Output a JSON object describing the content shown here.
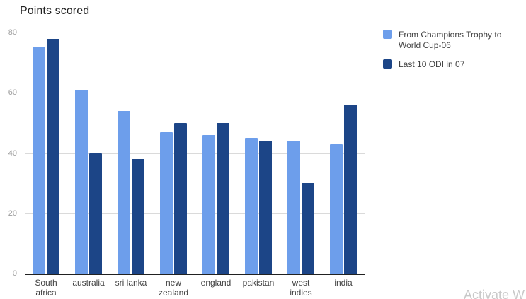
{
  "title": "Points scored",
  "watermark": "Activate W",
  "chart_data": {
    "type": "bar",
    "title": "Points scored",
    "categories": [
      "South africa",
      "australia",
      "sri lanka",
      "new zealand",
      "england",
      "pakistan",
      "west indies",
      "india"
    ],
    "series": [
      {
        "name": "From Champions Trophy to World Cup-06",
        "color": "#6d9eeb",
        "values": [
          75,
          61,
          54,
          47,
          46,
          45,
          44,
          43
        ]
      },
      {
        "name": "Last 10 ODI in 07",
        "color": "#1c4587",
        "values": [
          78,
          40,
          38,
          50,
          50,
          44,
          30,
          56
        ]
      }
    ],
    "xlabel": "",
    "ylabel": "",
    "ylim": [
      0,
      80
    ],
    "yticks": [
      0,
      20,
      40,
      60,
      80
    ],
    "grid": true,
    "legend_position": "right",
    "axis_color": "#212121",
    "gridline_color": "#dadada",
    "tick_label_color": "#9e9e9e",
    "category_label_color": "#424242"
  }
}
